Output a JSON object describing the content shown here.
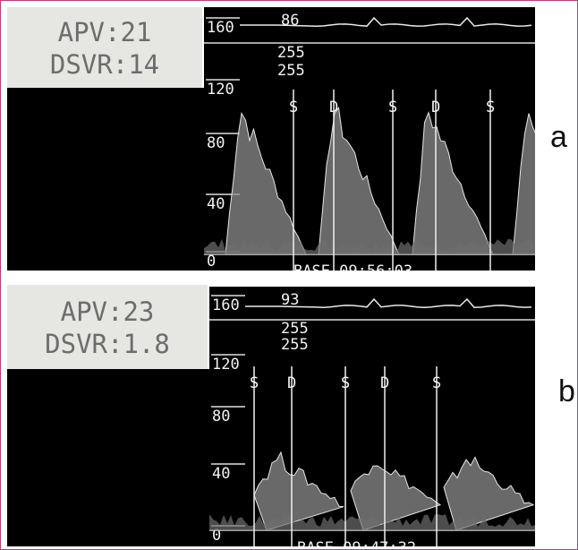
{
  "panels": [
    {
      "id": "a",
      "letter": "a",
      "apv_label": "APV:21",
      "dsvr_label": "DSVR:14",
      "scale_labels": [
        "160",
        "120",
        "80",
        "40",
        "0"
      ],
      "heart_rate": "86",
      "gain_top": "255",
      "gain_bottom": "255",
      "phase_markers": [
        "S",
        "D",
        "S",
        "D",
        "S"
      ],
      "footer": "BASE 09:56:03"
    },
    {
      "id": "b",
      "letter": "b",
      "apv_label": "APV:23",
      "dsvr_label": "DSVR:1.8",
      "scale_labels": [
        "160",
        "120",
        "80",
        "40",
        "0"
      ],
      "heart_rate": "93",
      "gain_top": "255",
      "gain_bottom": "255",
      "phase_markers": [
        "S",
        "D",
        "S",
        "D",
        "S"
      ],
      "footer": "BASE 09:47:32"
    }
  ]
}
